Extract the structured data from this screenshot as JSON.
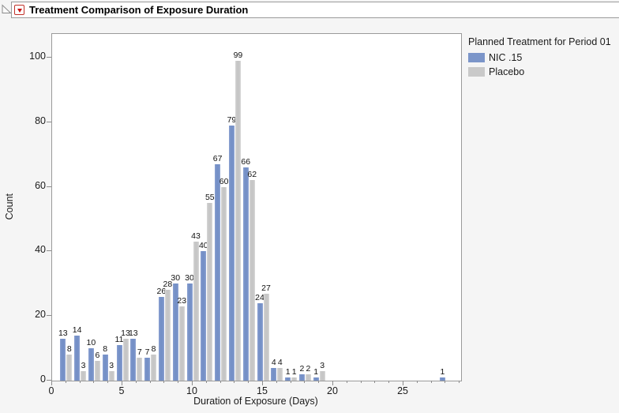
{
  "window": {
    "title": "Treatment Comparison of Exposure Duration",
    "disclosure_icon": "open-disclosure-triangle",
    "menu_icon": "red-triangle-menu"
  },
  "chart_data": {
    "type": "bar",
    "title": "Treatment Comparison of Exposure Duration",
    "xlabel": "Duration of Exposure (Days)",
    "ylabel": "Count",
    "legend_title": "Planned Treatment for Period 01",
    "legend_position": "right",
    "x": [
      1,
      2,
      3,
      4,
      5,
      6,
      7,
      8,
      9,
      10,
      11,
      12,
      13,
      14,
      15,
      16,
      17,
      18,
      19,
      28
    ],
    "series": [
      {
        "name": "NIC .15",
        "color": "#7b95c9",
        "values": [
          13,
          14,
          10,
          8,
          11,
          13,
          7,
          26,
          30,
          30,
          40,
          67,
          79,
          66,
          24,
          4,
          1,
          2,
          1,
          1
        ]
      },
      {
        "name": "Placebo",
        "color": "#c9c9c9",
        "values": [
          8,
          3,
          6,
          3,
          13,
          7,
          8,
          28,
          23,
          43,
          55,
          60,
          99,
          62,
          27,
          4,
          1,
          2,
          3,
          null
        ]
      }
    ],
    "x_major_ticks": [
      0,
      5,
      10,
      15,
      20,
      25
    ],
    "x_minor_tick_step": 1,
    "x_minor_tick_max": 29,
    "y_ticks": [
      0,
      20,
      40,
      60,
      80,
      100
    ],
    "xlim": [
      0,
      29.1
    ],
    "ylim": [
      0,
      107.3
    ],
    "grid": false,
    "bar_value_labels": true
  }
}
